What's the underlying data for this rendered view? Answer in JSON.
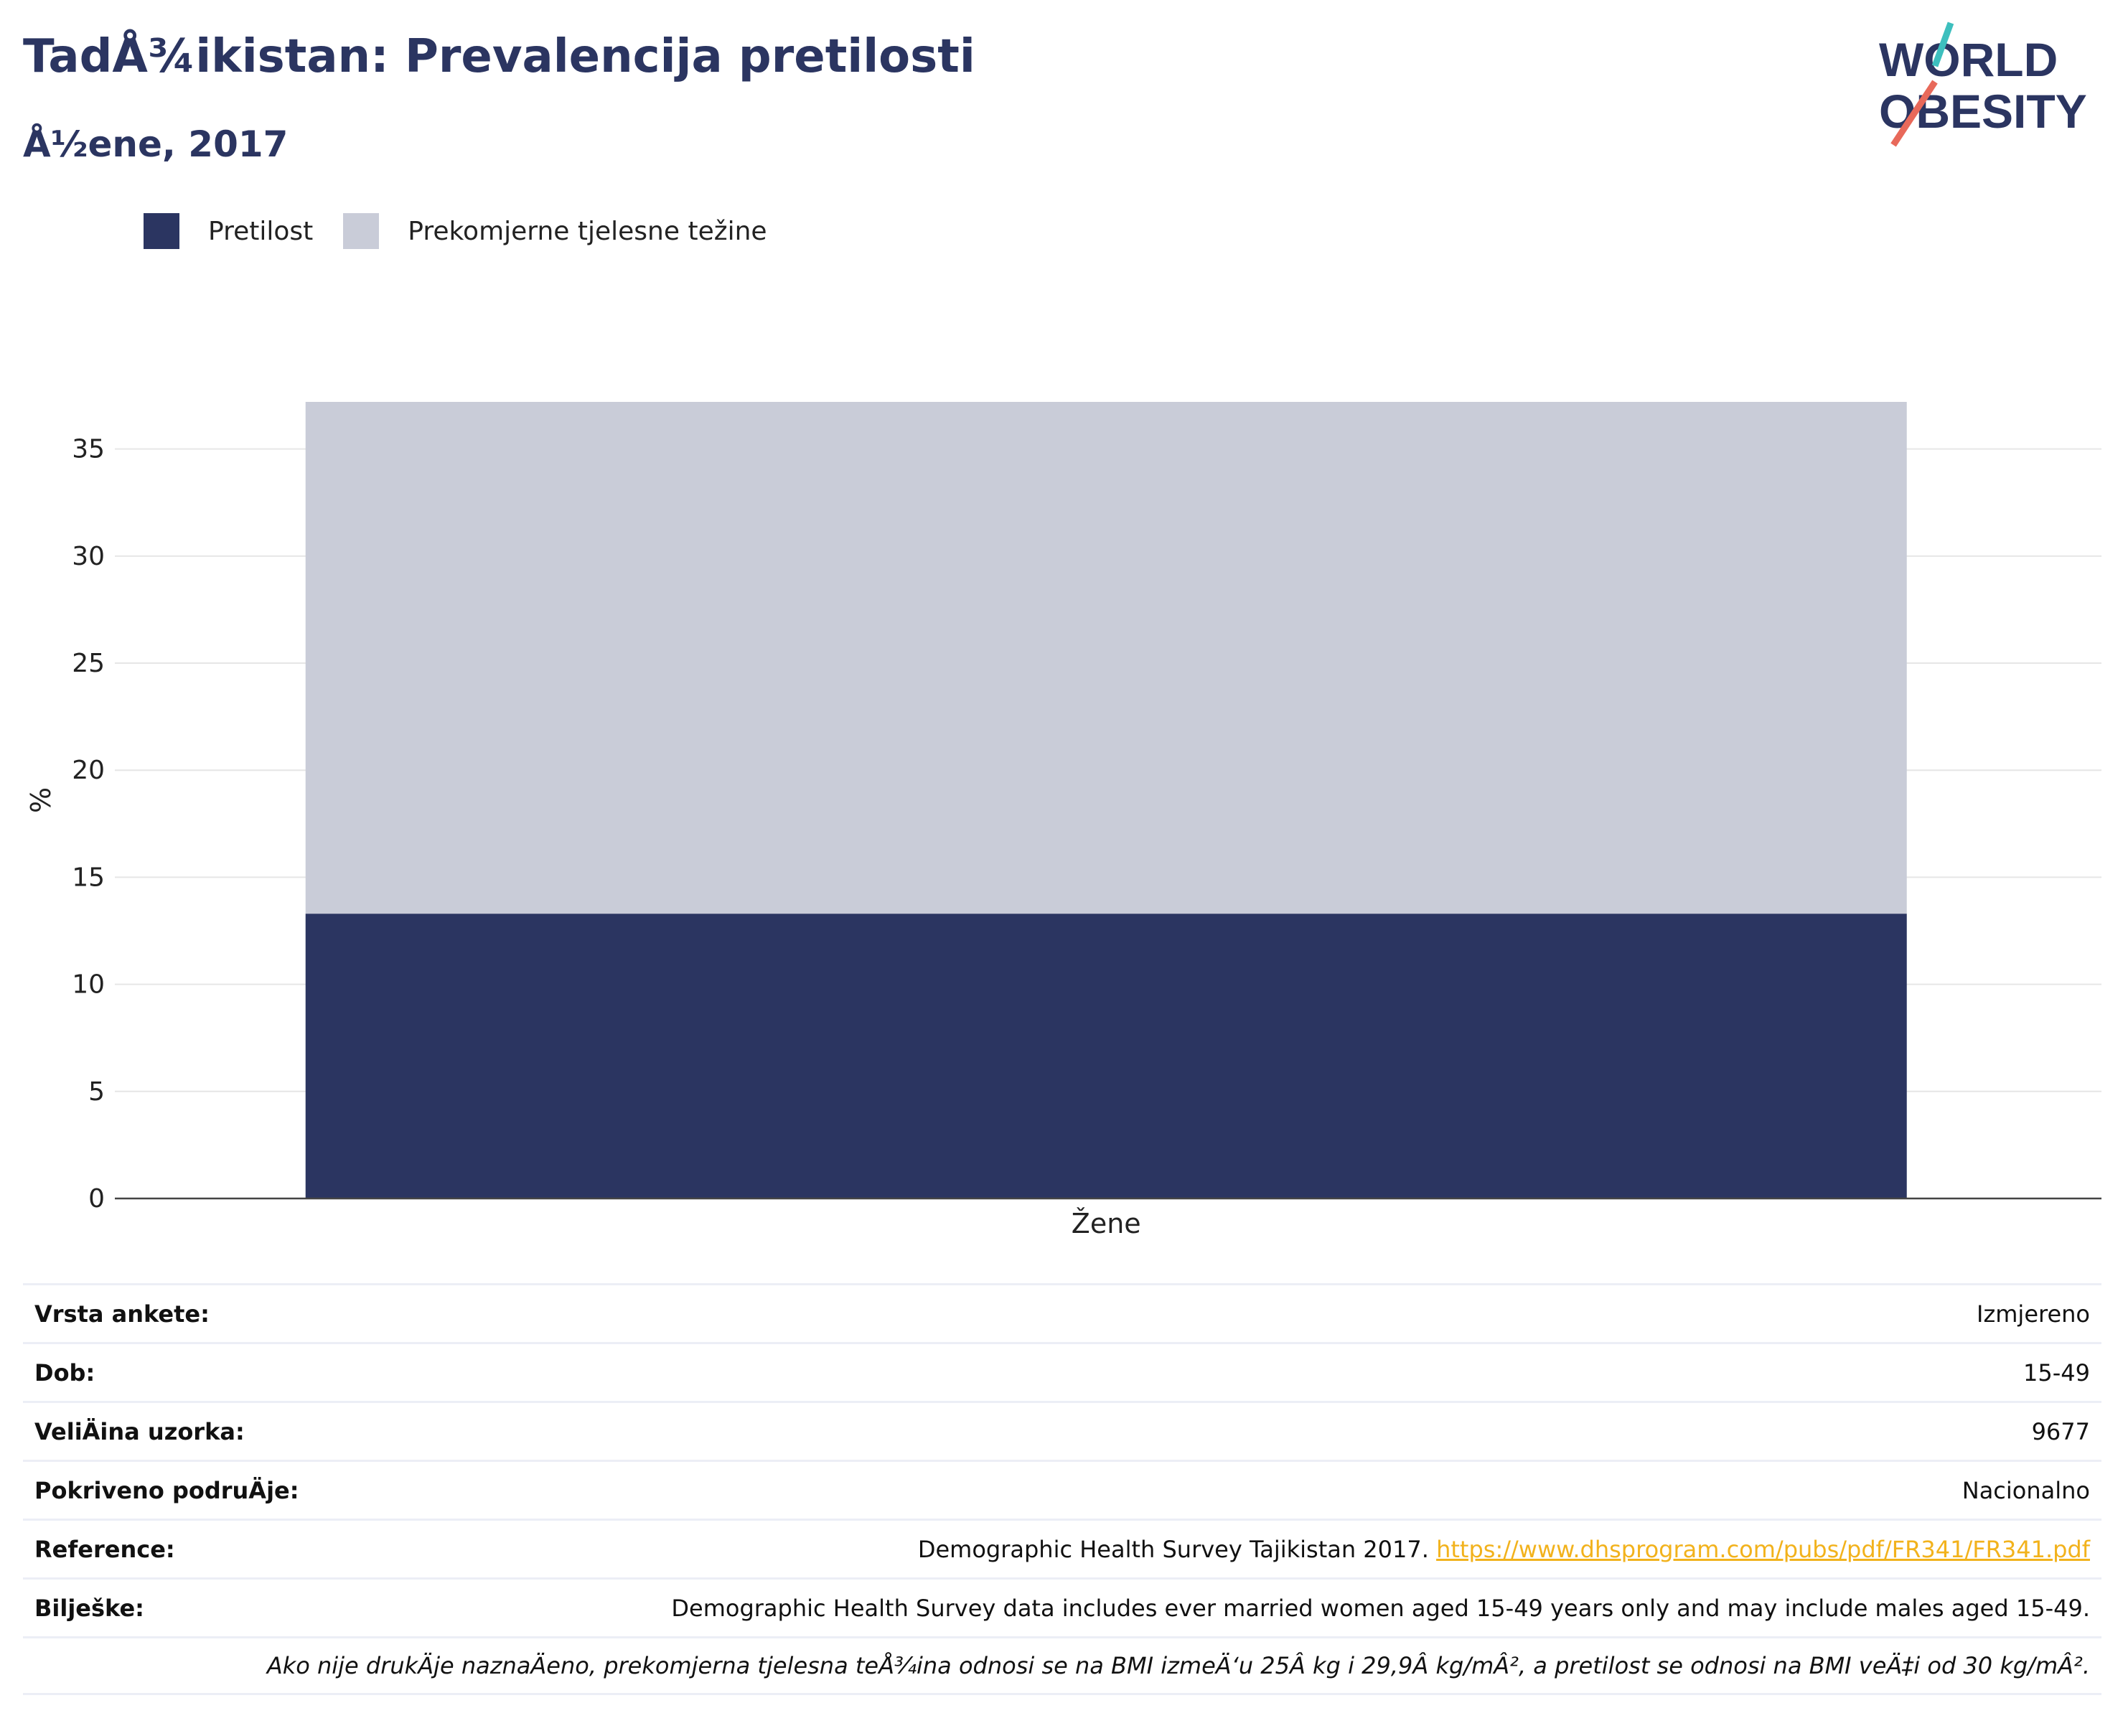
{
  "title": "TadÅ¾ikistan: Prevalencija pretilosti",
  "subtitle": "Å½ene, 2017",
  "logo": {
    "line1": "WORLD",
    "line2": "OBESITY",
    "slash_colors": [
      "#3dbfbe",
      "#e8695a"
    ],
    "text_color": "#2b3561"
  },
  "legend": [
    {
      "label": "Pretilost",
      "color": "#2b3561"
    },
    {
      "label": "Prekomjerne tjelesne težine",
      "color": "#c9ccd8"
    }
  ],
  "chart_data": {
    "type": "bar",
    "stacked": true,
    "categories": [
      "Žene"
    ],
    "series": [
      {
        "name": "Pretilost",
        "values": [
          13.3
        ],
        "color": "#2b3561"
      },
      {
        "name": "Prekomjerne tjelesne težine",
        "values": [
          23.9
        ],
        "color": "#c9ccd8"
      }
    ],
    "ylabel": "%",
    "ylim": [
      0,
      37.2
    ],
    "yticks": [
      0,
      5,
      10,
      15,
      20,
      25,
      30,
      35
    ],
    "grid": true,
    "legend_position": "top-left"
  },
  "info": {
    "rows": [
      {
        "label": "Vrsta ankete:",
        "value": "Izmjereno"
      },
      {
        "label": "Dob:",
        "value": "15-49"
      },
      {
        "label": "VeliÄ\u001dina uzorka:",
        "value": "9677"
      },
      {
        "label": "Pokriveno podruÄ\u001dje:",
        "value": "Nacionalno"
      },
      {
        "label": "Reference:",
        "value": "Demographic Health Survey Tajikistan 2017.",
        "link": "https://www.dhsprogram.com/pubs/pdf/FR341/FR341.pdf"
      },
      {
        "label": "Bilješke:",
        "value": "Demographic Health Survey data includes ever married women aged 15-49 years only and may include males aged 15-49."
      }
    ],
    "note": "Ako nije drukÄ\u001dje naznaÄ\u001deno, prekomjerna tjelesna teÅ¾ina odnosi se na BMI izmeÄ‘u 25Â kg i 29,9Â kg/mÂ², a pretilost se odnosi na BMI veÄ‡i od 30 kg/mÂ²."
  }
}
